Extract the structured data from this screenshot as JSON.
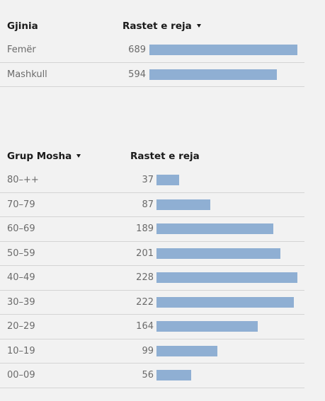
{
  "chart_data": [
    {
      "type": "bar",
      "orientation": "horizontal",
      "category_header": "Gjinia",
      "value_header": "Rastet e reja",
      "sorted_by": "value",
      "categories": [
        "Femër",
        "Mashkull"
      ],
      "values": [
        689,
        594
      ],
      "xlim": [
        0,
        689
      ]
    },
    {
      "type": "bar",
      "orientation": "horizontal",
      "category_header": "Grup Mosha",
      "value_header": "Rastet e reja",
      "sorted_by": "category",
      "categories": [
        "80–++",
        "70–79",
        "60–69",
        "50–59",
        "40–49",
        "30–39",
        "20–29",
        "10–19",
        "00–09"
      ],
      "values": [
        37,
        87,
        189,
        201,
        228,
        222,
        164,
        99,
        56
      ],
      "xlim": [
        0,
        228
      ]
    }
  ],
  "colors": {
    "bar": "#8fafd3",
    "text": "#6b6b6b",
    "header": "#1a1a1a",
    "divider": "#d4d4d4",
    "background": "#f2f2f2"
  },
  "icons": {
    "sort": "sort-caret-down-icon"
  }
}
